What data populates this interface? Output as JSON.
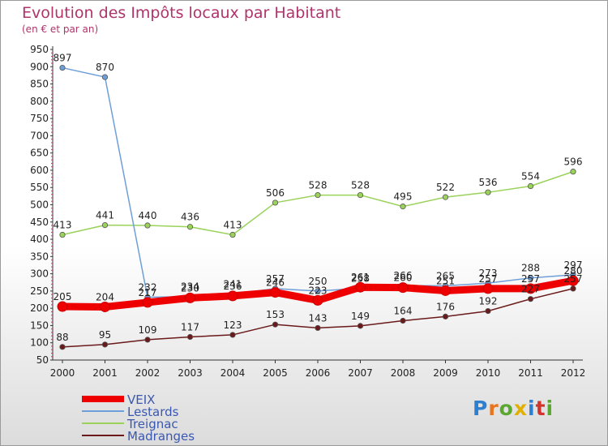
{
  "title": "Evolution des Impôts locaux par Habitant",
  "subtitle": "(en € et par an)",
  "logo": {
    "text": "Proxiti",
    "letters": [
      {
        "ch": "P",
        "color": "#2e7fd0"
      },
      {
        "ch": "r",
        "color": "#e9741c"
      },
      {
        "ch": "o",
        "color": "#5aa830"
      },
      {
        "ch": "x",
        "color": "#e0b000"
      },
      {
        "ch": "i",
        "color": "#2e7fd0"
      },
      {
        "ch": "t",
        "color": "#d0342c"
      },
      {
        "ch": "i",
        "color": "#5aa830"
      }
    ]
  },
  "chart_data": {
    "type": "line",
    "title": "Evolution des Impôts locaux par Habitant",
    "subtitle": "(en € et par an)",
    "x": [
      "2000",
      "2001",
      "2002",
      "2003",
      "2004",
      "2005",
      "2006",
      "2007",
      "2008",
      "2009",
      "2010",
      "2011",
      "2012"
    ],
    "ylim": [
      50,
      950
    ],
    "yticks": [
      50,
      100,
      150,
      200,
      250,
      300,
      350,
      400,
      450,
      500,
      550,
      600,
      650,
      700,
      750,
      800,
      850,
      900,
      950
    ],
    "grid": false,
    "legend": "bottom-left",
    "series": [
      {
        "name": "VEIX",
        "color": "#ee0000",
        "values": [
          205,
          204,
          217,
          230,
          236,
          246,
          223,
          261,
          260,
          251,
          257,
          257,
          280
        ]
      },
      {
        "name": "Lestards",
        "color": "#6f9fd8",
        "values": [
          897,
          870,
          232,
          234,
          241,
          257,
          250,
          258,
          266,
          265,
          273,
          288,
          297
        ]
      },
      {
        "name": "Treignac",
        "color": "#9ad25a",
        "values": [
          413,
          441,
          440,
          436,
          413,
          506,
          528,
          528,
          495,
          522,
          536,
          554,
          596
        ]
      },
      {
        "name": "Madranges",
        "color": "#6a1a1a",
        "values": [
          88,
          95,
          109,
          117,
          123,
          153,
          143,
          149,
          164,
          176,
          192,
          227,
          257
        ]
      }
    ]
  }
}
